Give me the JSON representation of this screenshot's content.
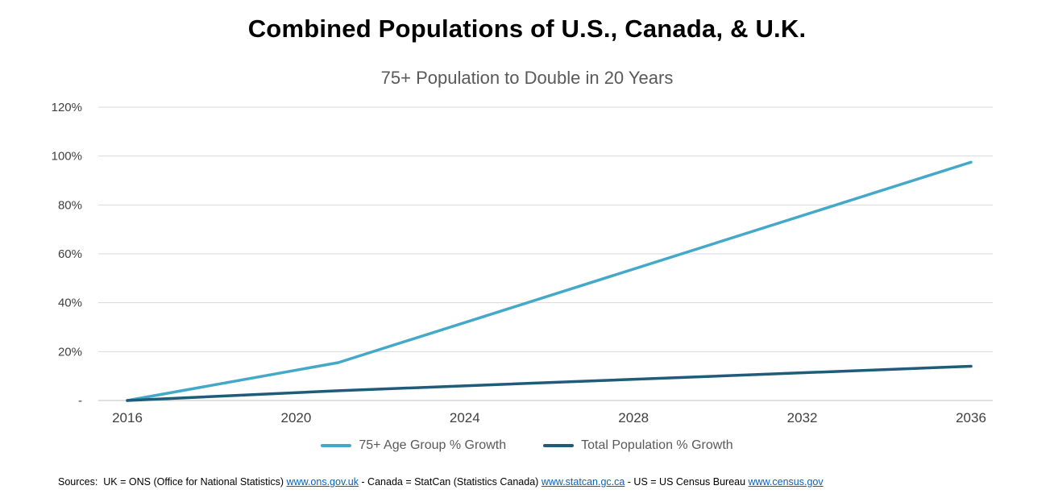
{
  "header": {
    "title": "Combined Populations of U.S., Canada, & U.K.",
    "subtitle": "75+ Population to Double in 20 Years"
  },
  "chart_data": {
    "type": "line",
    "title": "Combined Populations of U.S., Canada, & U.K.",
    "subtitle": "75+ Population to Double in 20 Years",
    "xlabel": "",
    "ylabel": "",
    "xlim": [
      2016,
      2036
    ],
    "ylim": [
      0,
      120
    ],
    "grid": true,
    "gridline_color": "#d9d9d9",
    "axis_line_color": "#bfbfbf",
    "legend_position": "bottom",
    "y_ticks": [
      {
        "value": 0,
        "label": "-"
      },
      {
        "value": 20,
        "label": "20%"
      },
      {
        "value": 40,
        "label": "40%"
      },
      {
        "value": 60,
        "label": "60%"
      },
      {
        "value": 80,
        "label": "80%"
      },
      {
        "value": 100,
        "label": "100%"
      },
      {
        "value": 120,
        "label": "120%"
      }
    ],
    "x_ticks": [
      {
        "value": 2016,
        "label": "2016"
      },
      {
        "value": 2020,
        "label": "2020"
      },
      {
        "value": 2024,
        "label": "2024"
      },
      {
        "value": 2028,
        "label": "2028"
      },
      {
        "value": 2032,
        "label": "2032"
      },
      {
        "value": 2036,
        "label": "2036"
      }
    ],
    "series": [
      {
        "name": "75+ Age Group % Growth",
        "color": "#44A8C8",
        "points": [
          [
            2016,
            0
          ],
          [
            2021,
            15.5
          ],
          [
            2036,
            97.5
          ]
        ]
      },
      {
        "name": "Total Population % Growth",
        "color": "#1F5C7A",
        "points": [
          [
            2016,
            0
          ],
          [
            2021,
            4
          ],
          [
            2036,
            14
          ]
        ]
      }
    ]
  },
  "sources": {
    "segments": [
      {
        "text": "Sources:  UK = ONS (Office for National Statistics) "
      },
      {
        "link": "www.ons.gov.uk"
      },
      {
        "text": " - Canada = StatCan (Statistics Canada) "
      },
      {
        "link": "www.statcan.gc.ca"
      },
      {
        "text": " - US = US Census Bureau "
      },
      {
        "link": "www.census.gov"
      }
    ]
  }
}
